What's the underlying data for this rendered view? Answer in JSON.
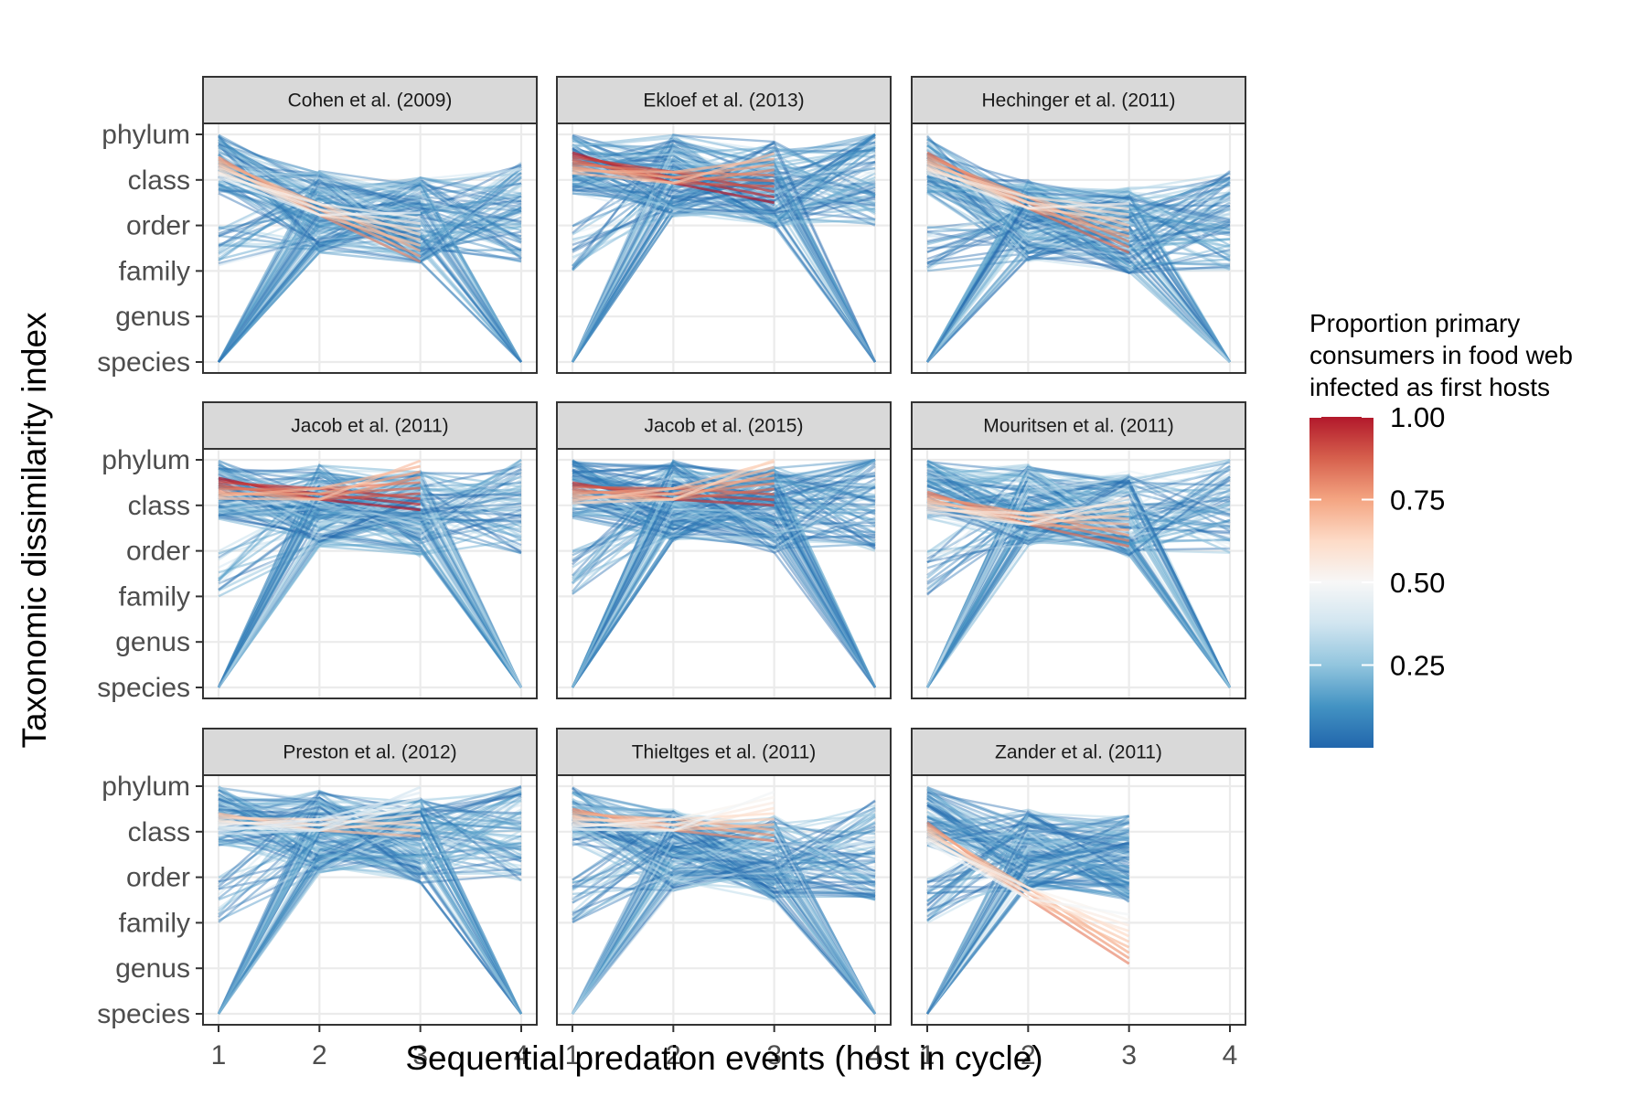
{
  "chart_data": {
    "type": "line",
    "facets": [
      {
        "title": "Cohen et al. (2009)",
        "n_hosts": 4,
        "max_red": 0.8,
        "red_end": 2.2,
        "red_start": 4.5,
        "mid_level": 3.3
      },
      {
        "title": "Ekloef et al. (2013)",
        "n_hosts": 4,
        "max_red": 1.0,
        "red_end": 3.5,
        "red_start": 4.6,
        "mid_level": 4.1
      },
      {
        "title": "Hechinger et al. (2011)",
        "n_hosts": 4,
        "max_red": 0.85,
        "red_end": 2.4,
        "red_start": 4.6,
        "mid_level": 3.1
      },
      {
        "title": "Jacob et al. (2011)",
        "n_hosts": 4,
        "max_red": 1.0,
        "red_end": 3.9,
        "red_start": 4.6,
        "mid_level": 4.0
      },
      {
        "title": "Jacob et al. (2015)",
        "n_hosts": 4,
        "max_red": 0.95,
        "red_end": 4.0,
        "red_start": 4.5,
        "mid_level": 4.1
      },
      {
        "title": "Mouritsen et al. (2011)",
        "n_hosts": 4,
        "max_red": 0.85,
        "red_end": 3.1,
        "red_start": 4.3,
        "mid_level": 4.0
      },
      {
        "title": "Preston et al. (2012)",
        "n_hosts": 4,
        "max_red": 0.7,
        "red_end": 3.9,
        "red_start": 4.4,
        "mid_level": 4.0
      },
      {
        "title": "Thieltges et al. (2011)",
        "n_hosts": 4,
        "max_red": 0.8,
        "red_end": 3.8,
        "red_start": 4.5,
        "mid_level": 3.6
      },
      {
        "title": "Zander et al. (2011)",
        "n_hosts": 3,
        "max_red": 0.8,
        "red_end": 1.1,
        "red_start": 4.2,
        "mid_level": 3.6
      }
    ],
    "x_ticks": [
      "1",
      "2",
      "3",
      "4"
    ],
    "y_ticks": [
      "species",
      "genus",
      "family",
      "order",
      "class",
      "phylum"
    ],
    "x_range": [
      1,
      4
    ],
    "y_range": [
      0,
      5
    ],
    "xlabel": "Sequential predation events (host in cycle)",
    "ylabel": "Taxonomic dissimilarity index",
    "legend": {
      "title_lines": [
        "Proportion primary",
        "consumers in food web",
        "infected as first hosts"
      ],
      "ticks": [
        "1.00",
        "0.75",
        "0.50",
        "0.25"
      ],
      "tick_values": [
        1.0,
        0.75,
        0.5,
        0.25
      ],
      "range": [
        0.0,
        1.0
      ],
      "colors": [
        "#2166ac",
        "#4393c3",
        "#92c5de",
        "#d1e5f0",
        "#f7f7f7",
        "#fddbc7",
        "#f4a582",
        "#d6604d",
        "#b2182b"
      ],
      "placement": "right"
    },
    "grid": true
  }
}
